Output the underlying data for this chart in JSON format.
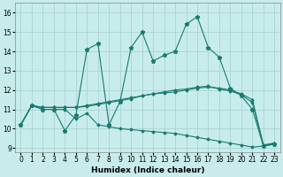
{
  "xlabel": "Humidex (Indice chaleur)",
  "bg_color": "#c8ecec",
  "grid_color": "#aad4d4",
  "line_color": "#1a7a6e",
  "xlim": [
    -0.5,
    23.5
  ],
  "ylim": [
    8.8,
    16.5
  ],
  "yticks": [
    9,
    10,
    11,
    12,
    13,
    14,
    15,
    16
  ],
  "xticks": [
    0,
    1,
    2,
    3,
    4,
    5,
    6,
    7,
    8,
    9,
    10,
    11,
    12,
    13,
    14,
    15,
    16,
    17,
    18,
    19,
    20,
    21,
    22,
    23
  ],
  "line1": [
    10.2,
    11.2,
    11.0,
    11.0,
    9.9,
    10.7,
    14.1,
    14.4,
    10.2,
    11.4,
    14.2,
    15.0,
    13.5,
    13.8,
    14.0,
    15.4,
    15.8,
    14.2,
    13.7,
    12.1,
    11.7,
    11.0,
    9.1,
    9.2
  ],
  "line2": [
    10.2,
    11.2,
    11.1,
    11.1,
    11.1,
    11.1,
    11.2,
    11.3,
    11.4,
    11.5,
    11.6,
    11.7,
    11.8,
    11.85,
    11.9,
    12.0,
    12.1,
    12.15,
    12.1,
    12.0,
    11.8,
    11.5,
    9.15,
    9.25
  ],
  "line3": [
    10.2,
    11.2,
    11.1,
    11.1,
    11.1,
    11.1,
    11.15,
    11.25,
    11.35,
    11.45,
    11.55,
    11.7,
    11.8,
    11.9,
    12.0,
    12.05,
    12.15,
    12.2,
    12.05,
    11.95,
    11.75,
    11.35,
    9.15,
    9.25
  ],
  "line4": [
    10.2,
    11.2,
    11.0,
    11.0,
    11.0,
    10.5,
    10.8,
    10.2,
    10.1,
    10.0,
    9.95,
    9.9,
    9.85,
    9.8,
    9.75,
    9.65,
    9.55,
    9.45,
    9.35,
    9.25,
    9.15,
    9.05,
    9.1,
    9.2
  ]
}
